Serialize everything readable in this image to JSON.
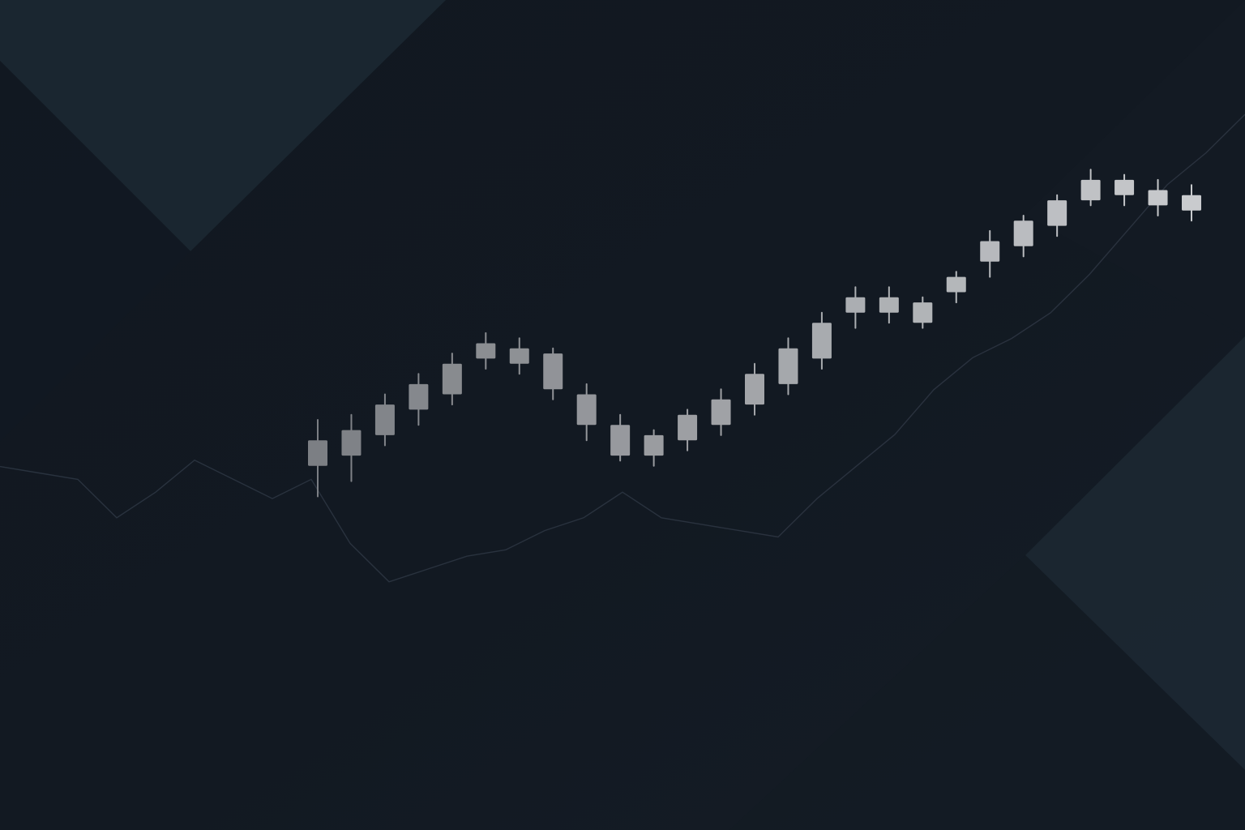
{
  "colors": {
    "background_dark": "#0f151d",
    "background_mid": "#16202a",
    "panel_light": "#1b2731",
    "candle_dim": "#7c7f84",
    "candle_bright": "#c9cbce",
    "line": "#2b3440"
  },
  "chart_data": {
    "type": "candlestick",
    "title": "",
    "xlabel": "",
    "ylabel": "",
    "grid": false,
    "legend": "none",
    "ylim": [
      0,
      100
    ],
    "candles": [
      {
        "open": 31,
        "high": 40,
        "low": 25,
        "close": 36
      },
      {
        "open": 33,
        "high": 41,
        "low": 28,
        "close": 38
      },
      {
        "open": 37,
        "high": 45,
        "low": 35,
        "close": 43
      },
      {
        "open": 42,
        "high": 49,
        "low": 39,
        "close": 47
      },
      {
        "open": 45,
        "high": 53,
        "low": 43,
        "close": 51
      },
      {
        "open": 52,
        "high": 57,
        "low": 50,
        "close": 55
      },
      {
        "open": 54,
        "high": 56,
        "low": 49,
        "close": 51
      },
      {
        "open": 53,
        "high": 54,
        "low": 44,
        "close": 46
      },
      {
        "open": 45,
        "high": 47,
        "low": 36,
        "close": 39
      },
      {
        "open": 39,
        "high": 41,
        "low": 32,
        "close": 33
      },
      {
        "open": 33,
        "high": 38,
        "low": 31,
        "close": 37
      },
      {
        "open": 36,
        "high": 42,
        "low": 34,
        "close": 41
      },
      {
        "open": 39,
        "high": 46,
        "low": 37,
        "close": 44
      },
      {
        "open": 43,
        "high": 51,
        "low": 41,
        "close": 49
      },
      {
        "open": 47,
        "high": 56,
        "low": 45,
        "close": 54
      },
      {
        "open": 52,
        "high": 61,
        "low": 50,
        "close": 59
      },
      {
        "open": 61,
        "high": 66,
        "low": 58,
        "close": 64
      },
      {
        "open": 64,
        "high": 66,
        "low": 59,
        "close": 61
      },
      {
        "open": 63,
        "high": 64,
        "low": 58,
        "close": 59
      },
      {
        "open": 65,
        "high": 69,
        "low": 63,
        "close": 68
      },
      {
        "open": 71,
        "high": 77,
        "low": 68,
        "close": 75
      },
      {
        "open": 74,
        "high": 80,
        "low": 72,
        "close": 79
      },
      {
        "open": 78,
        "high": 84,
        "low": 76,
        "close": 83
      },
      {
        "open": 83,
        "high": 89,
        "low": 82,
        "close": 87
      },
      {
        "open": 87,
        "high": 88,
        "low": 82,
        "close": 84
      },
      {
        "open": 85,
        "high": 87,
        "low": 80,
        "close": 82
      },
      {
        "open": 84,
        "high": 86,
        "low": 79,
        "close": 81
      }
    ],
    "line_series": [
      {
        "x": 0,
        "y": 36
      },
      {
        "x": 1,
        "y": 35
      },
      {
        "x": 2,
        "y": 34
      },
      {
        "x": 3,
        "y": 28
      },
      {
        "x": 4,
        "y": 32
      },
      {
        "x": 5,
        "y": 37
      },
      {
        "x": 6,
        "y": 34
      },
      {
        "x": 7,
        "y": 31
      },
      {
        "x": 8,
        "y": 34
      },
      {
        "x": 9,
        "y": 24
      },
      {
        "x": 10,
        "y": 18
      },
      {
        "x": 11,
        "y": 20
      },
      {
        "x": 12,
        "y": 22
      },
      {
        "x": 13,
        "y": 23
      },
      {
        "x": 14,
        "y": 26
      },
      {
        "x": 15,
        "y": 28
      },
      {
        "x": 16,
        "y": 32
      },
      {
        "x": 17,
        "y": 28
      },
      {
        "x": 18,
        "y": 27
      },
      {
        "x": 19,
        "y": 26
      },
      {
        "x": 20,
        "y": 25
      },
      {
        "x": 21,
        "y": 31
      },
      {
        "x": 22,
        "y": 36
      },
      {
        "x": 23,
        "y": 41
      },
      {
        "x": 24,
        "y": 48
      },
      {
        "x": 25,
        "y": 53
      },
      {
        "x": 26,
        "y": 56
      },
      {
        "x": 27,
        "y": 60
      },
      {
        "x": 28,
        "y": 66
      },
      {
        "x": 29,
        "y": 73
      },
      {
        "x": 30,
        "y": 80
      },
      {
        "x": 31,
        "y": 85
      },
      {
        "x": 32,
        "y": 91
      }
    ]
  }
}
